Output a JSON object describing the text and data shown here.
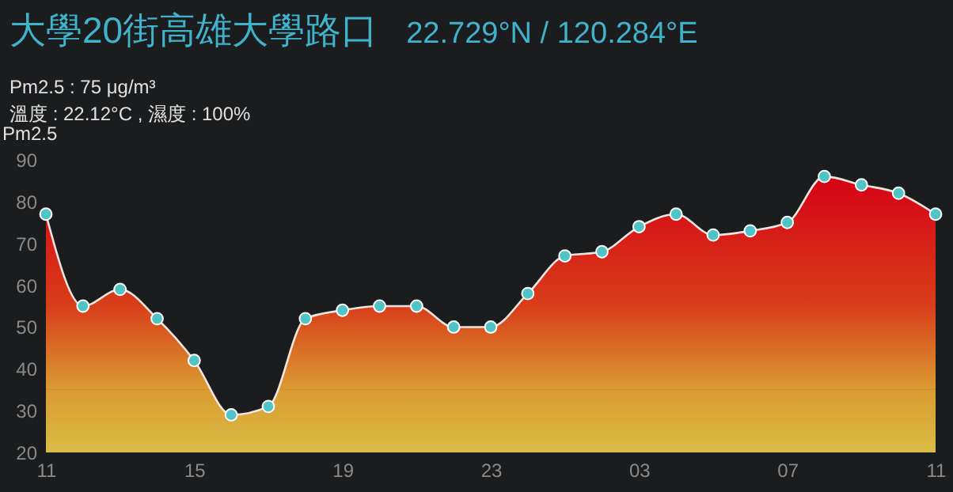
{
  "chart_data": {
    "type": "area",
    "title": "大學20街高雄大學路口",
    "annotations": [
      "22.729°N / 120.284°E",
      "Pm2.5 : 75 μg/m³",
      "溫度 : 22.12°C , 濕度 : 100%"
    ],
    "ylabel": "Pm2.5",
    "categories": [
      "11",
      null,
      null,
      null,
      "15",
      null,
      null,
      null,
      "19",
      null,
      null,
      null,
      "23",
      null,
      null,
      null,
      "03",
      null,
      null,
      null,
      "07",
      null,
      null,
      null,
      "11"
    ],
    "series": [
      {
        "color": "#4fc3c6",
        "values": [
          77,
          55,
          59,
          52,
          42,
          29,
          31,
          52,
          54,
          55,
          55,
          50,
          50,
          58,
          67,
          68,
          74,
          77,
          72,
          73,
          75,
          86,
          84,
          82,
          77
        ]
      }
    ],
    "bands": [
      {
        "axis": "y",
        "from": 20,
        "to": 35,
        "color": "#d8bc45"
      },
      {
        "axis": "y",
        "from": 35,
        "to": 55,
        "color": "#dc7a1e"
      },
      {
        "axis": "y",
        "from": 55,
        "to": 90,
        "color": "#d50216"
      }
    ],
    "ylim": [
      20,
      90
    ],
    "yticks": [
      20,
      30,
      40,
      50,
      60,
      70,
      80,
      90
    ],
    "marker": "circle"
  }
}
